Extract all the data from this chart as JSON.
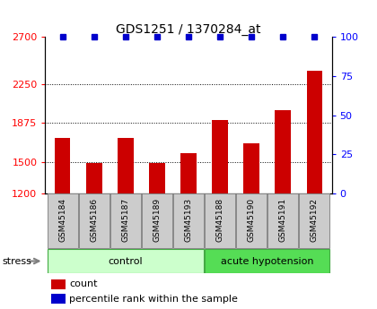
{
  "title": "GDS1251 / 1370284_at",
  "samples": [
    "GSM45184",
    "GSM45186",
    "GSM45187",
    "GSM45189",
    "GSM45193",
    "GSM45188",
    "GSM45190",
    "GSM45191",
    "GSM45192"
  ],
  "bar_values": [
    1730,
    1490,
    1730,
    1490,
    1580,
    1900,
    1680,
    2000,
    2380
  ],
  "percentile_values": [
    100,
    100,
    100,
    100,
    100,
    100,
    100,
    100,
    100
  ],
  "bar_color": "#cc0000",
  "percentile_color": "#0000cc",
  "ylim_left": [
    1200,
    2700
  ],
  "ylim_right": [
    0,
    100
  ],
  "yticks_left": [
    1200,
    1500,
    1875,
    2250,
    2700
  ],
  "yticks_right": [
    0,
    25,
    50,
    75,
    100
  ],
  "grid_lines": [
    1500,
    1875,
    2250
  ],
  "n_control": 5,
  "n_acute": 4,
  "control_label": "control",
  "acute_label": "acute hypotension",
  "stress_label": "stress",
  "group_bg_color_control": "#ccffcc",
  "group_bg_color_acute": "#55dd55",
  "sample_box_color": "#cccccc",
  "legend_count_label": "count",
  "legend_percentile_label": "percentile rank within the sample",
  "title_fontsize": 10,
  "tick_fontsize": 8,
  "bar_bottom": 1200
}
